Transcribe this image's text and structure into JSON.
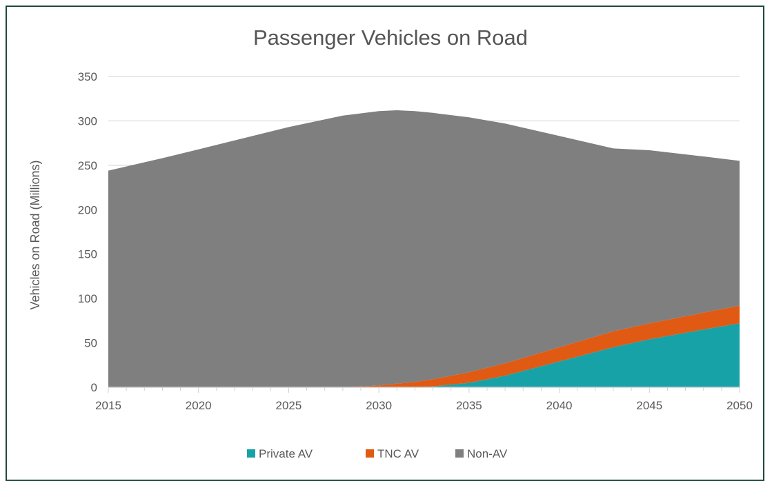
{
  "chart_data": {
    "type": "area",
    "stacked": true,
    "title": "Passenger Vehicles on Road",
    "ylabel": "Vehicles on Road (Millions)",
    "xlabel": "",
    "x": [
      2015,
      2018,
      2020,
      2022,
      2025,
      2028,
      2030,
      2031,
      2032,
      2033,
      2035,
      2037,
      2040,
      2043,
      2045,
      2048,
      2050
    ],
    "xticks": [
      2015,
      2020,
      2025,
      2030,
      2035,
      2040,
      2045,
      2050
    ],
    "ylim": [
      0,
      350
    ],
    "yticks": [
      0,
      50,
      100,
      150,
      200,
      250,
      300,
      350
    ],
    "grid": true,
    "legend_position": "bottom",
    "series": [
      {
        "name": "Private AV",
        "color": "#17a2a8",
        "values": [
          0,
          0,
          0,
          0,
          0,
          0,
          0,
          0,
          0,
          1,
          5,
          13,
          29,
          45,
          54,
          65,
          72
        ]
      },
      {
        "name": "TNC AV",
        "color": "#e05a14",
        "values": [
          0,
          0,
          0,
          0,
          0,
          0,
          2,
          4,
          6,
          8,
          12,
          14,
          16,
          18,
          18,
          19,
          20
        ]
      },
      {
        "name": "Non-AV",
        "color": "#7f7f7f",
        "values": [
          244,
          258,
          268,
          278,
          293,
          306,
          309,
          308,
          305,
          300,
          287,
          270,
          238,
          206,
          195,
          176,
          163
        ]
      }
    ]
  }
}
